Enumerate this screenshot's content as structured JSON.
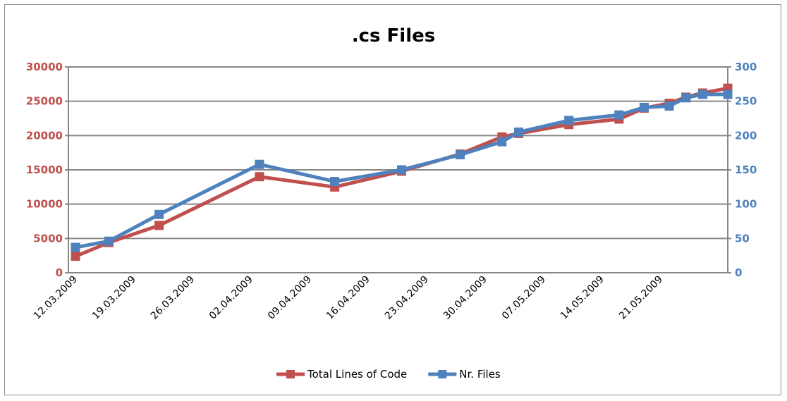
{
  "chart_data": {
    "type": "line",
    "title": ".cs Files",
    "xlabel": "",
    "ylabel": "",
    "grid": "horizontal",
    "legend_position": "bottom",
    "x_categories": [
      "12.03.2009",
      "19.03.2009",
      "26.03.2009",
      "02.04.2009",
      "09.04.2009",
      "16.04.2009",
      "23.04.2009",
      "30.04.2009",
      "07.05.2009",
      "14.05.2009",
      "21.05.2009"
    ],
    "x_domain": [
      "2009-03-12",
      "2009-05-29"
    ],
    "y_left": {
      "lim": [
        0,
        30000
      ],
      "ticks": [
        "0",
        "5000",
        "10000",
        "15000",
        "20000",
        "25000",
        "30000"
      ],
      "color": "#c0504d"
    },
    "y_right": {
      "lim": [
        0,
        300
      ],
      "ticks": [
        "0",
        "50",
        "100",
        "150",
        "200",
        "250",
        "300"
      ],
      "color": "#4f81bd"
    },
    "series": [
      {
        "name": "Total Lines of Code",
        "axis": "left",
        "color": "#c0504d",
        "x": [
          "2009-03-12",
          "2009-03-16",
          "2009-03-22",
          "2009-04-03",
          "2009-04-12",
          "2009-04-20",
          "2009-04-27",
          "2009-05-02",
          "2009-05-04",
          "2009-05-10",
          "2009-05-16",
          "2009-05-19",
          "2009-05-22",
          "2009-05-24",
          "2009-05-26",
          "2009-05-29"
        ],
        "values": [
          2400,
          4400,
          6900,
          14000,
          12500,
          14800,
          17300,
          19800,
          20300,
          21600,
          22400,
          24000,
          24700,
          25600,
          26200,
          26900
        ]
      },
      {
        "name": "Nr. Files",
        "axis": "right",
        "color": "#4f81bd",
        "x": [
          "2009-03-12",
          "2009-03-16",
          "2009-03-22",
          "2009-04-03",
          "2009-04-12",
          "2009-04-20",
          "2009-04-27",
          "2009-05-02",
          "2009-05-04",
          "2009-05-10",
          "2009-05-16",
          "2009-05-19",
          "2009-05-22",
          "2009-05-24",
          "2009-05-26",
          "2009-05-29"
        ],
        "values": [
          37,
          46,
          85,
          158,
          133,
          150,
          172,
          191,
          205,
          222,
          230,
          241,
          243,
          255,
          260,
          260
        ]
      }
    ]
  }
}
